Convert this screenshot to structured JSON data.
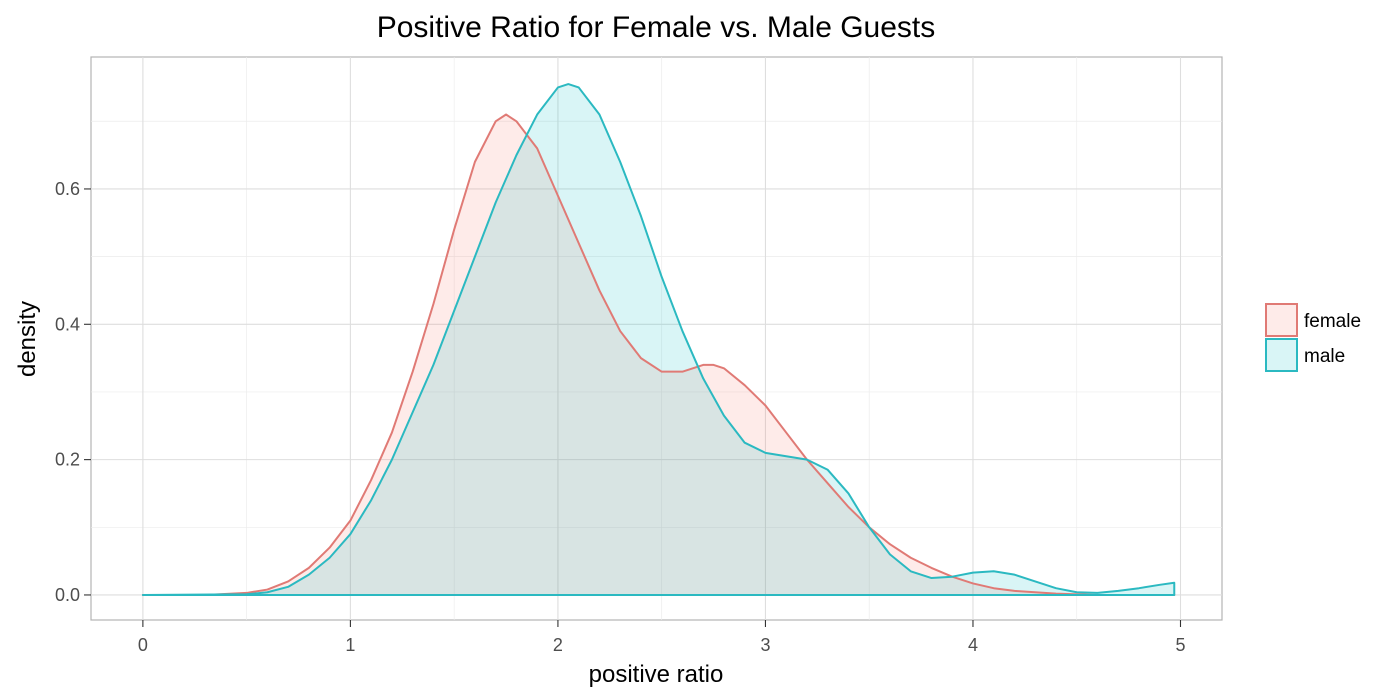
{
  "chart_data": {
    "type": "area",
    "title": "Positive Ratio for Female vs. Male Guests",
    "xlabel": "positive ratio",
    "ylabel": "density",
    "xlim": [
      -0.25,
      5.2
    ],
    "ylim": [
      -0.037,
      0.795
    ],
    "x_ticks": [
      0,
      1,
      2,
      3,
      4,
      5
    ],
    "x_tick_labels": [
      "0",
      "1",
      "2",
      "3",
      "4",
      "5"
    ],
    "y_ticks": [
      0.0,
      0.2,
      0.4,
      0.6
    ],
    "y_tick_labels": [
      "0.0",
      "0.2",
      "0.4",
      "0.6"
    ],
    "grid": true,
    "legend": {
      "placement": "right",
      "entries": [
        "female",
        "male"
      ]
    },
    "series": [
      {
        "name": "female",
        "color": "#e07a75",
        "fill": "#f8766d",
        "points": [
          [
            0.0,
            0.0
          ],
          [
            0.3,
            0.0
          ],
          [
            0.5,
            0.003
          ],
          [
            0.6,
            0.008
          ],
          [
            0.7,
            0.02
          ],
          [
            0.8,
            0.04
          ],
          [
            0.9,
            0.07
          ],
          [
            1.0,
            0.11
          ],
          [
            1.1,
            0.17
          ],
          [
            1.2,
            0.24
          ],
          [
            1.3,
            0.33
          ],
          [
            1.4,
            0.43
          ],
          [
            1.5,
            0.54
          ],
          [
            1.6,
            0.64
          ],
          [
            1.7,
            0.7
          ],
          [
            1.75,
            0.71
          ],
          [
            1.8,
            0.7
          ],
          [
            1.9,
            0.66
          ],
          [
            2.0,
            0.59
          ],
          [
            2.1,
            0.52
          ],
          [
            2.2,
            0.45
          ],
          [
            2.3,
            0.39
          ],
          [
            2.4,
            0.35
          ],
          [
            2.5,
            0.33
          ],
          [
            2.6,
            0.33
          ],
          [
            2.7,
            0.34
          ],
          [
            2.75,
            0.34
          ],
          [
            2.8,
            0.335
          ],
          [
            2.9,
            0.31
          ],
          [
            3.0,
            0.28
          ],
          [
            3.1,
            0.24
          ],
          [
            3.2,
            0.2
          ],
          [
            3.3,
            0.165
          ],
          [
            3.4,
            0.13
          ],
          [
            3.5,
            0.1
          ],
          [
            3.6,
            0.075
          ],
          [
            3.7,
            0.055
          ],
          [
            3.8,
            0.04
          ],
          [
            3.9,
            0.027
          ],
          [
            4.0,
            0.017
          ],
          [
            4.1,
            0.01
          ],
          [
            4.2,
            0.006
          ],
          [
            4.4,
            0.002
          ],
          [
            4.6,
            0.0
          ],
          [
            4.97,
            0.0
          ]
        ]
      },
      {
        "name": "male",
        "color": "#2bb9c1",
        "fill": "#00bfc4",
        "points": [
          [
            0.0,
            0.0
          ],
          [
            0.5,
            0.001
          ],
          [
            0.6,
            0.004
          ],
          [
            0.7,
            0.012
          ],
          [
            0.8,
            0.03
          ],
          [
            0.9,
            0.055
          ],
          [
            1.0,
            0.09
          ],
          [
            1.1,
            0.14
          ],
          [
            1.2,
            0.2
          ],
          [
            1.3,
            0.27
          ],
          [
            1.4,
            0.34
          ],
          [
            1.5,
            0.42
          ],
          [
            1.6,
            0.5
          ],
          [
            1.7,
            0.58
          ],
          [
            1.8,
            0.65
          ],
          [
            1.9,
            0.71
          ],
          [
            2.0,
            0.75
          ],
          [
            2.05,
            0.755
          ],
          [
            2.1,
            0.75
          ],
          [
            2.2,
            0.71
          ],
          [
            2.3,
            0.64
          ],
          [
            2.4,
            0.56
          ],
          [
            2.5,
            0.47
          ],
          [
            2.6,
            0.39
          ],
          [
            2.7,
            0.32
          ],
          [
            2.8,
            0.265
          ],
          [
            2.9,
            0.225
          ],
          [
            3.0,
            0.21
          ],
          [
            3.1,
            0.205
          ],
          [
            3.2,
            0.2
          ],
          [
            3.3,
            0.185
          ],
          [
            3.4,
            0.15
          ],
          [
            3.5,
            0.1
          ],
          [
            3.6,
            0.06
          ],
          [
            3.7,
            0.035
          ],
          [
            3.8,
            0.025
          ],
          [
            3.9,
            0.027
          ],
          [
            4.0,
            0.033
          ],
          [
            4.1,
            0.035
          ],
          [
            4.2,
            0.03
          ],
          [
            4.3,
            0.02
          ],
          [
            4.4,
            0.01
          ],
          [
            4.5,
            0.004
          ],
          [
            4.6,
            0.003
          ],
          [
            4.7,
            0.006
          ],
          [
            4.8,
            0.01
          ],
          [
            4.9,
            0.015
          ],
          [
            4.97,
            0.018
          ]
        ]
      }
    ]
  }
}
